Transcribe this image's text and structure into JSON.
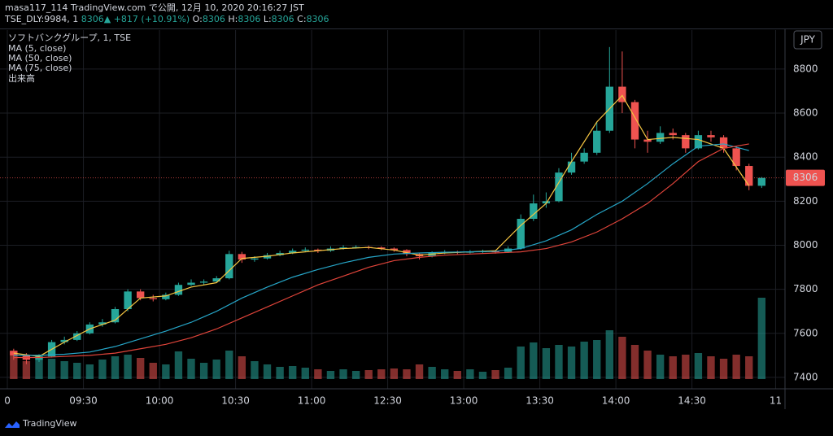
{
  "header": {
    "publisher": "masa117_114 TradingView.com で公開, 12月 10, 2020 20:16:27 JST",
    "symbol": "TSE_DLY:9984, 1",
    "price": 8306,
    "arrow": "▲",
    "change": "+817 (+10.91%)",
    "ohlc": [
      {
        "label": "O:",
        "value": 8306
      },
      {
        "label": "H:",
        "value": 8306
      },
      {
        "label": "L:",
        "value": 8306
      },
      {
        "label": "C:",
        "value": 8306
      }
    ]
  },
  "legend": [
    "ソフトバンクグループ, 1, TSE",
    "MA (5, close)",
    "MA (50, close)",
    "MA (75, close)",
    "出来高"
  ],
  "currency": "JPY",
  "footer": "TradingView",
  "chart_data": {
    "type": "candlestick",
    "xlim": [
      -2.9,
      306.7
    ],
    "ylim": [
      7348,
      8977
    ],
    "vlim": [
      0,
      100
    ],
    "xticks": [
      0,
      {
        "value": 30,
        "label": "09:30"
      },
      {
        "value": 60,
        "label": "10:00"
      },
      {
        "value": 90,
        "label": "10:30"
      },
      {
        "value": 120,
        "label": "11:00"
      },
      {
        "value": 150,
        "label": "12:30"
      },
      {
        "value": 180,
        "label": "13:00"
      },
      {
        "value": 210,
        "label": "13:30"
      },
      {
        "value": 240,
        "label": "14:00"
      },
      {
        "value": 270,
        "label": "14:30"
      },
      {
        "value": 303,
        "label": "11"
      }
    ],
    "yticks": [
      7400,
      7600,
      7800,
      8000,
      8200,
      8400,
      8600,
      8800
    ],
    "grid": true,
    "up_color": "#26a69a",
    "down_color": "#ef5350",
    "x": [
      0,
      5,
      10,
      15,
      20,
      25,
      30,
      35,
      40,
      45,
      50,
      55,
      60,
      65,
      70,
      75,
      80,
      85,
      90,
      95,
      100,
      105,
      110,
      115,
      120,
      125,
      130,
      135,
      140,
      145,
      150,
      155,
      160,
      165,
      170,
      175,
      180,
      185,
      190,
      195,
      200,
      205,
      210,
      215,
      220,
      225,
      230,
      235,
      240,
      245,
      250,
      255,
      260,
      265,
      270,
      275,
      280,
      285,
      290,
      295
    ],
    "candles": [
      [
        7520,
        7530,
        7480,
        7500
      ],
      [
        7500,
        7510,
        7460,
        7480
      ],
      [
        7480,
        7505,
        7470,
        7495
      ],
      [
        7495,
        7570,
        7490,
        7560
      ],
      [
        7560,
        7585,
        7550,
        7570
      ],
      [
        7570,
        7610,
        7565,
        7600
      ],
      [
        7600,
        7650,
        7595,
        7640
      ],
      [
        7640,
        7665,
        7630,
        7650
      ],
      [
        7650,
        7720,
        7645,
        7710
      ],
      [
        7710,
        7800,
        7700,
        7790
      ],
      [
        7790,
        7800,
        7750,
        7760
      ],
      [
        7760,
        7775,
        7745,
        7755
      ],
      [
        7755,
        7785,
        7750,
        7775
      ],
      [
        7775,
        7830,
        7770,
        7820
      ],
      [
        7820,
        7845,
        7815,
        7830
      ],
      [
        7830,
        7845,
        7820,
        7835
      ],
      [
        7835,
        7860,
        7830,
        7850
      ],
      [
        7850,
        7975,
        7845,
        7960
      ],
      [
        7960,
        7970,
        7920,
        7935
      ],
      [
        7935,
        7950,
        7925,
        7940
      ],
      [
        7940,
        7965,
        7935,
        7955
      ],
      [
        7955,
        7975,
        7950,
        7965
      ],
      [
        7965,
        7985,
        7960,
        7975
      ],
      [
        7975,
        7990,
        7970,
        7980
      ],
      [
        7980,
        7985,
        7965,
        7975
      ],
      [
        7975,
        7995,
        7970,
        7985
      ],
      [
        7985,
        8000,
        7980,
        7990
      ],
      [
        7990,
        8000,
        7985,
        7992
      ],
      [
        7992,
        7998,
        7982,
        7990
      ],
      [
        7990,
        7995,
        7978,
        7985
      ],
      [
        7985,
        7990,
        7970,
        7978
      ],
      [
        7978,
        7982,
        7950,
        7960
      ],
      [
        7960,
        7965,
        7935,
        7950
      ],
      [
        7950,
        7972,
        7945,
        7965
      ],
      [
        7965,
        7978,
        7960,
        7970
      ],
      [
        7970,
        7975,
        7960,
        7968
      ],
      [
        7968,
        7978,
        7962,
        7970
      ],
      [
        7970,
        7980,
        7965,
        7972
      ],
      [
        7972,
        7978,
        7962,
        7970
      ],
      [
        7970,
        7995,
        7965,
        7985
      ],
      [
        7985,
        8140,
        7980,
        8120
      ],
      [
        8120,
        8230,
        8110,
        8190
      ],
      [
        8190,
        8240,
        8170,
        8200
      ],
      [
        8200,
        8350,
        8195,
        8330
      ],
      [
        8330,
        8420,
        8320,
        8380
      ],
      [
        8380,
        8440,
        8370,
        8420
      ],
      [
        8420,
        8560,
        8410,
        8520
      ],
      [
        8520,
        8900,
        8510,
        8720
      ],
      [
        8720,
        8880,
        8600,
        8650
      ],
      [
        8650,
        8660,
        8440,
        8480
      ],
      [
        8480,
        8520,
        8420,
        8470
      ],
      [
        8470,
        8540,
        8460,
        8510
      ],
      [
        8510,
        8530,
        8480,
        8500
      ],
      [
        8500,
        8510,
        8420,
        8440
      ],
      [
        8440,
        8520,
        8435,
        8500
      ],
      [
        8500,
        8520,
        8470,
        8490
      ],
      [
        8490,
        8500,
        8420,
        8440
      ],
      [
        8440,
        8450,
        8340,
        8360
      ],
      [
        8360,
        8370,
        8250,
        8270
      ],
      [
        8270,
        8310,
        8260,
        8306
      ]
    ],
    "volume": [
      35,
      22,
      30,
      25,
      22,
      20,
      18,
      24,
      28,
      30,
      26,
      20,
      18,
      34,
      25,
      20,
      24,
      35,
      28,
      22,
      18,
      15,
      16,
      14,
      12,
      10,
      12,
      10,
      11,
      12,
      13,
      12,
      18,
      15,
      12,
      10,
      12,
      9,
      11,
      14,
      40,
      45,
      38,
      42,
      40,
      46,
      48,
      60,
      52,
      42,
      35,
      30,
      28,
      30,
      32,
      28,
      25,
      30,
      28,
      100
    ],
    "ma_x": [
      0,
      10,
      20,
      30,
      40,
      50,
      60,
      70,
      80,
      90,
      100,
      110,
      120,
      130,
      140,
      150,
      160,
      170,
      180,
      190,
      200,
      210,
      220,
      230,
      240,
      250,
      260,
      270,
      280,
      290
    ],
    "ma": [
      {
        "name": "MA (5, close)",
        "color": "#f5c542",
        "values": [
          7510,
          7495,
          7560,
          7620,
          7660,
          7760,
          7770,
          7810,
          7830,
          7940,
          7950,
          7965,
          7975,
          7985,
          7990,
          7978,
          7955,
          7965,
          7970,
          7975,
          8090,
          8190,
          8380,
          8560,
          8680,
          8480,
          8490,
          8480,
          8440,
          8270
        ]
      },
      {
        "name": "MA (50, close)",
        "color": "#26a6c8",
        "values": [
          7500,
          7500,
          7505,
          7515,
          7540,
          7575,
          7610,
          7650,
          7700,
          7760,
          7810,
          7855,
          7890,
          7920,
          7945,
          7960,
          7965,
          7968,
          7970,
          7972,
          7985,
          8020,
          8070,
          8140,
          8200,
          8280,
          8370,
          8450,
          8460,
          8430
        ]
      },
      {
        "name": "MA (75, close)",
        "color": "#e0443a",
        "values": [
          7490,
          7490,
          7495,
          7500,
          7510,
          7530,
          7550,
          7580,
          7620,
          7670,
          7720,
          7770,
          7820,
          7860,
          7900,
          7930,
          7945,
          7955,
          7960,
          7965,
          7970,
          7985,
          8015,
          8060,
          8120,
          8190,
          8280,
          8380,
          8440,
          8460
        ]
      }
    ]
  }
}
